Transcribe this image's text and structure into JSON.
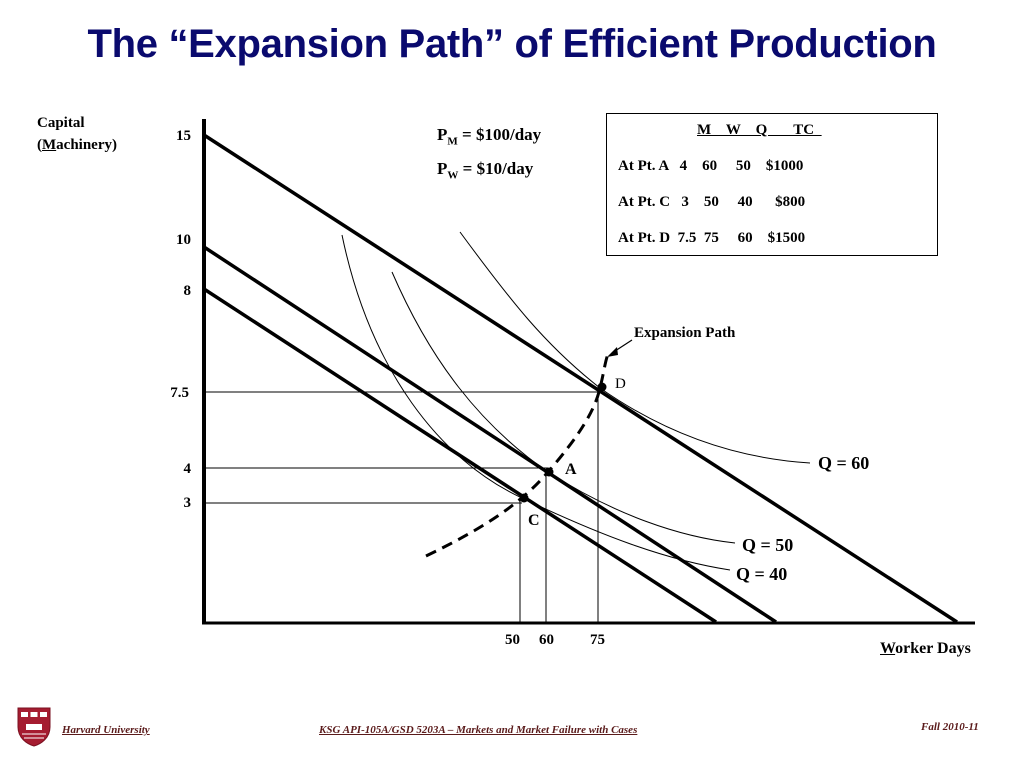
{
  "title": "The “Expansion Path” of Efficient Production",
  "axes": {
    "ylabel_line1": "Capital",
    "ylabel_line2_prefix": "(",
    "ylabel_line2_underlined": "M",
    "ylabel_line2_rest": "achinery)",
    "xlabel_underlined": "W",
    "xlabel_rest": "orker Days",
    "y_ticks": [
      "15",
      "10",
      "8",
      "7.5",
      "4",
      "3"
    ],
    "x_ticks": [
      "50",
      "60",
      "75"
    ]
  },
  "prices": {
    "pm_prefix": "P",
    "pm_sub": "M",
    "pm_rest": " = $100/day",
    "pw_prefix": "P",
    "pw_sub": "W",
    "pw_rest": " = $10/day"
  },
  "table": {
    "header": "M    W    Q       TC  ",
    "rows": [
      "At Pt. A   4    60     50    $1000",
      "At Pt. C   3    50     40      $800",
      "At Pt. D  7.5  75     60    $1500"
    ]
  },
  "annotations": {
    "expansion_path": "Expansion Path",
    "points": [
      "D",
      "A",
      "C"
    ],
    "isoquants": [
      "Q = 60",
      "Q = 50",
      "Q = 40"
    ]
  },
  "footer": {
    "left": "Harvard University",
    "center": "KSG API-105A/GSD 5203A – Markets and Market Failure with Cases",
    "right": "Fall 2010-11"
  },
  "colors": {
    "title": "#0a0a6e",
    "footer_text": "#5a1a1a",
    "shield": "#a51c30"
  }
}
